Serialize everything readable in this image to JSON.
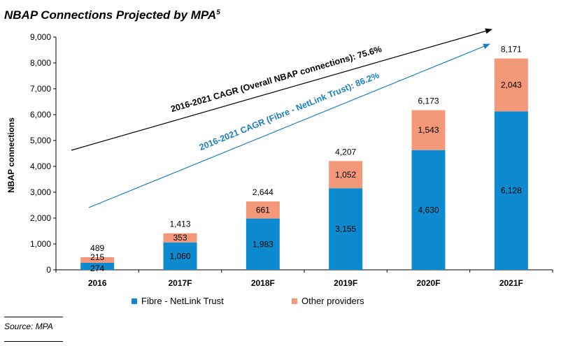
{
  "title": "NBAP Connections Projected by MPA",
  "title_footnote": "5",
  "source": "Source: MPA",
  "chart_data": {
    "type": "bar",
    "stacked": true,
    "categories": [
      "2016",
      "2017F",
      "2018F",
      "2019F",
      "2020F",
      "2021F"
    ],
    "series": [
      {
        "name": "Fibre - NetLink Trust",
        "values": [
          274,
          1060,
          1983,
          3155,
          4630,
          6128
        ],
        "color": "#0E8BD0"
      },
      {
        "name": "Other providers",
        "values": [
          215,
          353,
          661,
          1052,
          1543,
          2043
        ],
        "color": "#F4987A"
      }
    ],
    "totals": [
      489,
      1413,
      2644,
      4207,
      6173,
      8171
    ],
    "total_labels": [
      "489",
      "1,413",
      "2,644",
      "4,207",
      "6,173",
      "8,171"
    ],
    "segment_labels": [
      [
        "274",
        "1,060",
        "1,983",
        "3,155",
        "4,630",
        "6,128"
      ],
      [
        "215",
        "353",
        "661",
        "1,052",
        "1,543",
        "2,043"
      ]
    ],
    "ylabel": "NBAP connections",
    "xlabel": "",
    "ylim": [
      0,
      9000
    ],
    "yticks": [
      0,
      1000,
      2000,
      3000,
      4000,
      5000,
      6000,
      7000,
      8000,
      9000
    ],
    "ytick_labels": [
      "0",
      "1,000",
      "2,000",
      "3,000",
      "4,000",
      "5,000",
      "6,000",
      "7,000",
      "8,000",
      "9,000"
    ],
    "legend_position": "bottom",
    "grid": false,
    "annotations": [
      {
        "text": "2016-2021 CAGR (Overall NBAP connections): 75.6%",
        "color": "#000000"
      },
      {
        "text": "2016-2021 CAGR (Fibre - NetLink Trust): 86.2%",
        "color": "#1C7FC0"
      }
    ]
  }
}
